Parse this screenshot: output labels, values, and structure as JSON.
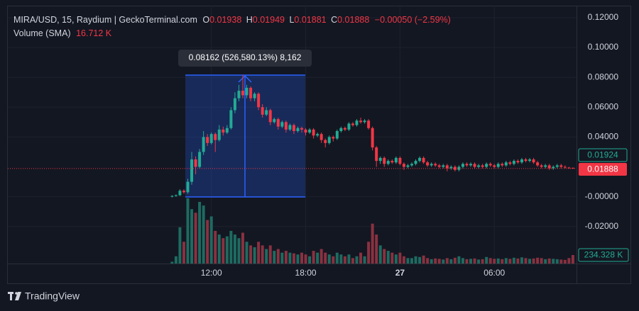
{
  "chart_data": {
    "type": "candlestick",
    "legend": {
      "symbol": "MIRA/USD, 15, Raydium | GeckoTerminal.com",
      "o_label": "O",
      "open": "0.01938",
      "h_label": "H",
      "high": "0.01949",
      "l_label": "L",
      "low": "0.01881",
      "c_label": "C",
      "close": "0.01888",
      "change": "−0.00050 (−2.59%)",
      "volume_label": "Volume (SMA)",
      "volume_value": "16.712 K"
    },
    "measure_label": "0.08162 (526,580.13%) 8,162",
    "price_labels": {
      "sma": "0.01924",
      "last": "0.01888",
      "volume": "234.328 K"
    },
    "footer": {
      "brand": "TradingView"
    },
    "up_color": "#22ab94",
    "down_color": "#f23645",
    "volume_up_color": "#1e6b61",
    "volume_down_color": "#8a3140",
    "grid": true,
    "xlim": [
      -0.95,
      35.23
    ],
    "xticks": [
      {
        "value": 12,
        "label": "12:00"
      },
      {
        "value": 18,
        "label": "18:00"
      },
      {
        "value": 24,
        "label": "27"
      },
      {
        "value": 30,
        "label": "06:00"
      }
    ],
    "ylim": [
      -0.0448,
      0.1271
    ],
    "yticks": [
      {
        "value": 0.12,
        "label": "0.12000"
      },
      {
        "value": 0.1,
        "label": "0.10000"
      },
      {
        "value": 0.08,
        "label": "0.08000"
      },
      {
        "value": 0.06,
        "label": "0.06000"
      },
      {
        "value": 0.04,
        "label": "0.04000"
      },
      {
        "value": 0,
        "label": "-0.00000"
      },
      {
        "value": -0.02,
        "label": "-0.02000"
      }
    ],
    "volume_ylim": [
      0,
      3360000
    ],
    "x": [
      9.5,
      9.75,
      10,
      10.25,
      10.5,
      10.75,
      11,
      11.25,
      11.5,
      11.75,
      12,
      12.25,
      12.5,
      12.75,
      13,
      13.25,
      13.5,
      13.75,
      14,
      14.25,
      14.5,
      14.75,
      15,
      15.25,
      15.5,
      15.75,
      16,
      16.25,
      16.5,
      16.75,
      17,
      17.25,
      17.5,
      17.75,
      18,
      18.25,
      18.5,
      18.75,
      19,
      19.25,
      19.5,
      19.75,
      20,
      20.25,
      20.5,
      20.75,
      21,
      21.25,
      21.5,
      21.75,
      22,
      22.25,
      22.5,
      22.75,
      23,
      23.25,
      23.5,
      23.75,
      24,
      24.25,
      24.5,
      24.75,
      25,
      25.25,
      25.5,
      25.75,
      26,
      26.25,
      26.5,
      26.75,
      27,
      27.25,
      27.5,
      27.75,
      28,
      28.25,
      28.5,
      28.75,
      29,
      29.25,
      29.5,
      29.75,
      30,
      30.25,
      30.5,
      30.75,
      31,
      31.25,
      31.5,
      31.75,
      32,
      32.25,
      32.5,
      32.75,
      33,
      33.25,
      33.5,
      33.75,
      34,
      34.25,
      34.5,
      34.75,
      35
    ],
    "open": [
      0,
      0.0005,
      0.001,
      0.004,
      0.003,
      0.01,
      0.025,
      0.02,
      0.03,
      0.04,
      0.036,
      0.042,
      0.038,
      0.045,
      0.043,
      0.046,
      0.058,
      0.066,
      0.071,
      0.068,
      0.073,
      0.066,
      0.069,
      0.06,
      0.055,
      0.058,
      0.05,
      0.052,
      0.047,
      0.05,
      0.045,
      0.048,
      0.044,
      0.046,
      0.045,
      0.043,
      0.045,
      0.041,
      0.042,
      0.038,
      0.036,
      0.04,
      0.039,
      0.044,
      0.046,
      0.045,
      0.049,
      0.048,
      0.051,
      0.05,
      0.051,
      0.046,
      0.033,
      0.024,
      0.026,
      0.022,
      0.024,
      0.023,
      0.026,
      0.022,
      0.02,
      0.021,
      0.022,
      0.024,
      0.026,
      0.023,
      0.021,
      0.022,
      0.021,
      0.02,
      0.021,
      0.019,
      0.02,
      0.018,
      0.02,
      0.022,
      0.021,
      0.022,
      0.02,
      0.021,
      0.02,
      0.022,
      0.021,
      0.02,
      0.022,
      0.021,
      0.023,
      0.022,
      0.024,
      0.023,
      0.025,
      0.024,
      0.025,
      0.023,
      0.021,
      0.02,
      0.021,
      0.019,
      0.02,
      0.021,
      0.02,
      0.0195,
      0.01938
    ],
    "high": [
      0.001,
      0.0015,
      0.005,
      0.005,
      0.012,
      0.03,
      0.027,
      0.032,
      0.044,
      0.042,
      0.043,
      0.043,
      0.048,
      0.047,
      0.048,
      0.06,
      0.07,
      0.075,
      0.0816,
      0.075,
      0.074,
      0.07,
      0.07,
      0.062,
      0.06,
      0.059,
      0.053,
      0.053,
      0.051,
      0.051,
      0.049,
      0.049,
      0.047,
      0.047,
      0.046,
      0.046,
      0.046,
      0.043,
      0.043,
      0.039,
      0.041,
      0.041,
      0.045,
      0.047,
      0.047,
      0.05,
      0.05,
      0.052,
      0.053,
      0.052,
      0.052,
      0.047,
      0.034,
      0.027,
      0.027,
      0.025,
      0.025,
      0.027,
      0.027,
      0.023,
      0.022,
      0.023,
      0.025,
      0.027,
      0.027,
      0.024,
      0.023,
      0.023,
      0.022,
      0.022,
      0.022,
      0.021,
      0.021,
      0.021,
      0.023,
      0.023,
      0.023,
      0.023,
      0.022,
      0.022,
      0.023,
      0.023,
      0.022,
      0.023,
      0.023,
      0.024,
      0.024,
      0.025,
      0.025,
      0.026,
      0.026,
      0.026,
      0.026,
      0.024,
      0.022,
      0.022,
      0.022,
      0.021,
      0.022,
      0.022,
      0.021,
      0.02,
      0.01949
    ],
    "low": [
      -0.0005,
      0,
      0.0005,
      0.002,
      0.002,
      0.008,
      0.015,
      0.019,
      0.028,
      0.034,
      0.035,
      0.03,
      0.037,
      0.041,
      0.042,
      0.045,
      0.056,
      0.064,
      0.066,
      0.066,
      0.064,
      0.064,
      0.058,
      0.053,
      0.054,
      0.048,
      0.049,
      0.045,
      0.046,
      0.043,
      0.044,
      0.042,
      0.043,
      0.043,
      0.041,
      0.042,
      0.039,
      0.04,
      0.036,
      0.033,
      0.035,
      0.037,
      0.038,
      0.043,
      0.044,
      0.044,
      0.047,
      0.047,
      0.049,
      0.049,
      0.045,
      0.031,
      0.02,
      0.022,
      0.02,
      0.021,
      0.022,
      0.022,
      0.021,
      0.018,
      0.019,
      0.02,
      0.021,
      0.023,
      0.022,
      0.02,
      0.02,
      0.02,
      0.019,
      0.019,
      0.017,
      0.018,
      0.017,
      0.017,
      0.019,
      0.02,
      0.02,
      0.019,
      0.019,
      0.019,
      0.019,
      0.02,
      0.019,
      0.019,
      0.02,
      0.02,
      0.021,
      0.021,
      0.022,
      0.022,
      0.023,
      0.023,
      0.022,
      0.02,
      0.019,
      0.019,
      0.018,
      0.018,
      0.019,
      0.019,
      0.019,
      0.019,
      0.01881
    ],
    "close": [
      0.0005,
      0.001,
      0.004,
      0.003,
      0.01,
      0.025,
      0.02,
      0.03,
      0.04,
      0.036,
      0.042,
      0.038,
      0.045,
      0.043,
      0.046,
      0.058,
      0.066,
      0.071,
      0.068,
      0.073,
      0.066,
      0.069,
      0.06,
      0.055,
      0.058,
      0.05,
      0.052,
      0.047,
      0.05,
      0.045,
      0.048,
      0.044,
      0.046,
      0.045,
      0.043,
      0.045,
      0.041,
      0.042,
      0.038,
      0.036,
      0.04,
      0.039,
      0.044,
      0.046,
      0.045,
      0.049,
      0.048,
      0.051,
      0.05,
      0.051,
      0.046,
      0.033,
      0.024,
      0.026,
      0.022,
      0.024,
      0.023,
      0.026,
      0.022,
      0.02,
      0.021,
      0.022,
      0.024,
      0.026,
      0.023,
      0.021,
      0.022,
      0.021,
      0.02,
      0.021,
      0.019,
      0.02,
      0.018,
      0.02,
      0.022,
      0.021,
      0.022,
      0.02,
      0.021,
      0.02,
      0.022,
      0.021,
      0.02,
      0.022,
      0.021,
      0.023,
      0.022,
      0.024,
      0.023,
      0.025,
      0.024,
      0.025,
      0.023,
      0.021,
      0.02,
      0.021,
      0.019,
      0.02,
      0.021,
      0.02,
      0.0195,
      0.01938,
      0.01888
    ],
    "volume": [
      50000,
      200000,
      1000000,
      600000,
      1800000,
      1500000,
      1400000,
      1700000,
      1600000,
      1200000,
      1300000,
      900000,
      800000,
      700000,
      750000,
      900000,
      800000,
      700000,
      850000,
      600000,
      500000,
      450000,
      600000,
      500000,
      400000,
      500000,
      350000,
      400000,
      300000,
      350000,
      300000,
      280000,
      250000,
      300000,
      250000,
      200000,
      350000,
      300000,
      400000,
      300000,
      250000,
      200000,
      300000,
      250000,
      200000,
      250000,
      150000,
      200000,
      300000,
      200000,
      600000,
      1100000,
      800000,
      500000,
      400000,
      350000,
      300000,
      250000,
      300000,
      200000,
      150000,
      150000,
      200000,
      180000,
      220000,
      150000,
      120000,
      140000,
      130000,
      110000,
      150000,
      120000,
      160000,
      200000,
      150000,
      120000,
      130000,
      140000,
      110000,
      120000,
      180000,
      150000,
      130000,
      140000,
      120000,
      150000,
      130000,
      160000,
      140000,
      170000,
      150000,
      130000,
      140000,
      160000,
      150000,
      120000,
      140000,
      130000,
      120000,
      110000,
      100000,
      150000,
      234328
    ]
  }
}
